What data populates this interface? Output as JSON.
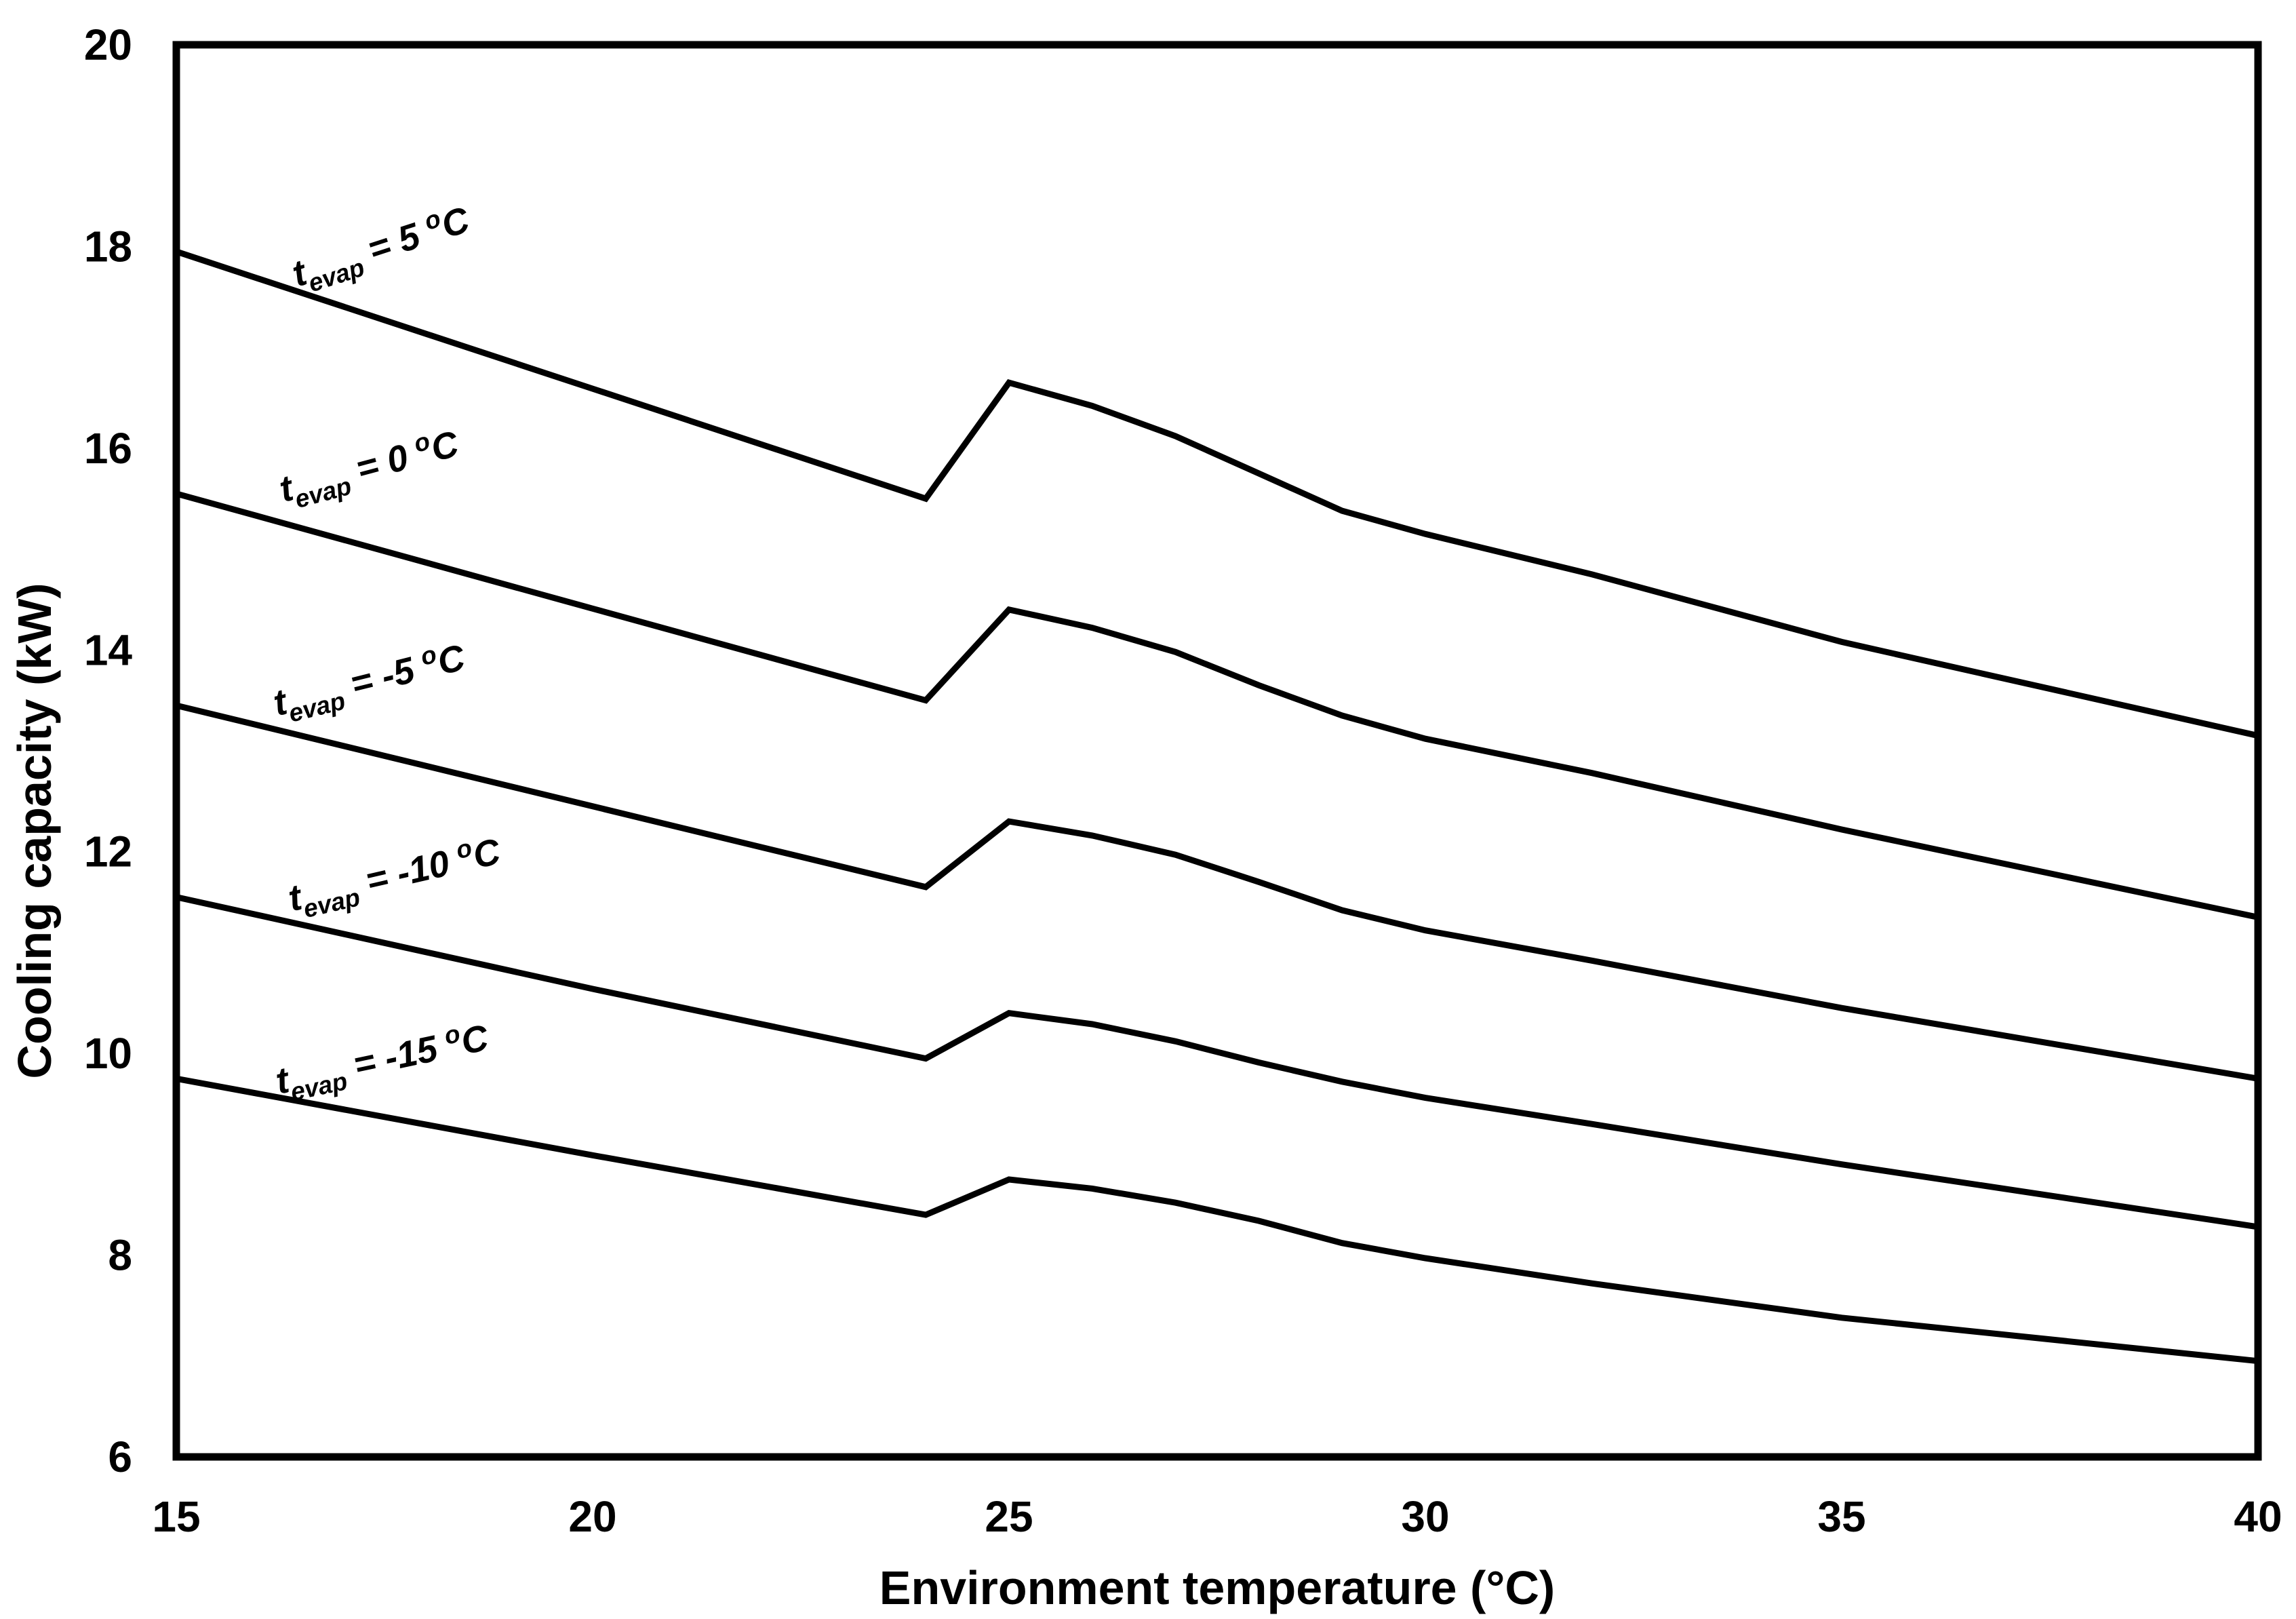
{
  "chart_data": {
    "type": "line",
    "title": "",
    "xlabel": "Environment temperature (°C)",
    "ylabel": "Cooling capacity (kW)",
    "xlim": [
      15,
      40
    ],
    "ylim": [
      6,
      20
    ],
    "x_ticks": [
      15,
      20,
      25,
      30,
      35,
      40
    ],
    "y_ticks": [
      6,
      8,
      10,
      12,
      14,
      16,
      18,
      20
    ],
    "grid": false,
    "legend_position": "inline-labels",
    "line_color": "#000000",
    "background": "#ffffff",
    "x": [
      15,
      20,
      24,
      25,
      26,
      27,
      28,
      29,
      30,
      32,
      35,
      40
    ],
    "series": [
      {
        "name": "t_evap = 5 °C",
        "values": [
          17.95,
          16.59,
          15.5,
          16.65,
          16.42,
          16.12,
          15.75,
          15.38,
          15.15,
          14.75,
          14.08,
          13.15
        ],
        "label": {
          "t": "t",
          "sub": "evap",
          "mid": " = 5 ",
          "sup": "o",
          "end": "C",
          "x": 17.5,
          "y": 17.88,
          "angle": -18
        }
      },
      {
        "name": "t_evap = 0 °C",
        "values": [
          15.55,
          14.41,
          13.5,
          14.4,
          14.22,
          13.98,
          13.65,
          13.35,
          13.12,
          12.78,
          12.22,
          11.35
        ],
        "label": {
          "t": "t",
          "sub": "evap",
          "mid": " = 0 ",
          "sup": "o",
          "end": "C",
          "x": 17.35,
          "y": 15.7,
          "angle": -15
        }
      },
      {
        "name": "t_evap = -5 °C",
        "values": [
          13.45,
          12.45,
          11.65,
          12.3,
          12.16,
          11.97,
          11.7,
          11.42,
          11.22,
          10.92,
          10.45,
          9.75
        ],
        "label": {
          "t": "t",
          "sub": "evap",
          "mid": " = -5 ",
          "sup": "o",
          "end": "C",
          "x": 17.35,
          "y": 13.58,
          "angle": -14
        }
      },
      {
        "name": "t_evap = -10 °C",
        "values": [
          11.55,
          10.64,
          9.95,
          10.4,
          10.29,
          10.12,
          9.91,
          9.72,
          9.56,
          9.3,
          8.9,
          8.28
        ],
        "label": {
          "t": "t",
          "sub": "evap",
          "mid": " = -10 ",
          "sup": "o",
          "end": "C",
          "x": 17.65,
          "y": 11.65,
          "angle": -13
        }
      },
      {
        "name": "t_evap = -15 °C",
        "values": [
          9.75,
          8.99,
          8.4,
          8.75,
          8.66,
          8.52,
          8.34,
          8.12,
          7.97,
          7.72,
          7.38,
          6.95
        ],
        "label": {
          "t": "t",
          "sub": "evap",
          "mid": " = -15 ",
          "sup": "o",
          "end": "C",
          "x": 17.5,
          "y": 9.82,
          "angle": -12
        }
      }
    ]
  }
}
